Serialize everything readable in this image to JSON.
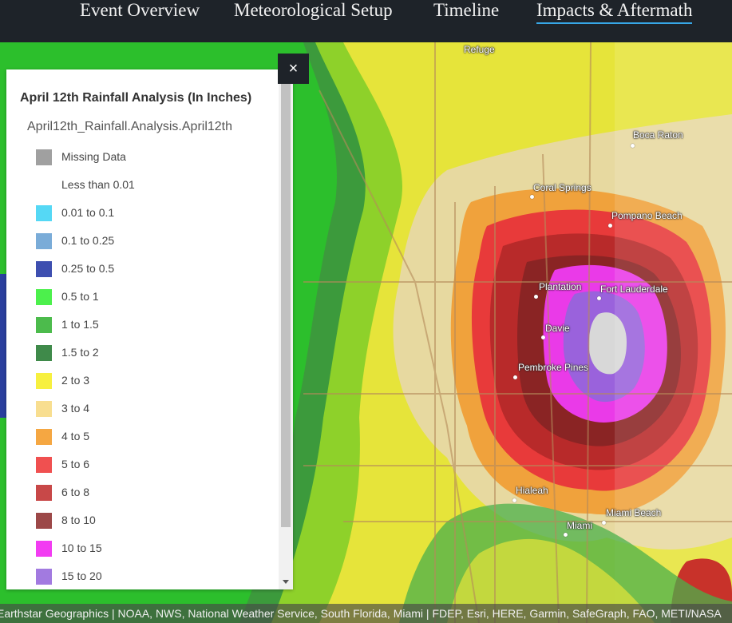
{
  "nav": {
    "tabs": [
      {
        "label": "Event Overview"
      },
      {
        "label": "Meteorological Setup"
      },
      {
        "label": "Timeline"
      },
      {
        "label": "Impacts & Aftermath"
      }
    ],
    "active_tab": "Impacts & Aftermath",
    "active_color": "#37a7e6"
  },
  "legend": {
    "title": "April 12th Rainfall Analysis (In Inches)",
    "layer_name": "April12th_Rainfall.Analysis.April12th",
    "close_label": "×",
    "items": [
      {
        "label": "Missing Data",
        "color": "#a0a0a0"
      },
      {
        "label": "Less than 0.01",
        "color": "#ffffff"
      },
      {
        "label": "0.01 to 0.1",
        "color": "#55d8f5"
      },
      {
        "label": "0.1 to 0.25",
        "color": "#7aacd8"
      },
      {
        "label": "0.25 to 0.5",
        "color": "#3e4fb0"
      },
      {
        "label": "0.5 to 1",
        "color": "#4cf04c"
      },
      {
        "label": "1 to 1.5",
        "color": "#4cbb4c"
      },
      {
        "label": "1.5 to 2",
        "color": "#3f8a4a"
      },
      {
        "label": "2 to 3",
        "color": "#f7f03f"
      },
      {
        "label": "3 to 4",
        "color": "#f8de90"
      },
      {
        "label": "4 to 5",
        "color": "#f5a742"
      },
      {
        "label": "5 to 6",
        "color": "#f05050"
      },
      {
        "label": "6 to 8",
        "color": "#c84848"
      },
      {
        "label": "8 to 10",
        "color": "#9c4848"
      },
      {
        "label": "10 to 15",
        "color": "#f23cf2"
      },
      {
        "label": "15 to 20",
        "color": "#a27ae0"
      }
    ]
  },
  "map": {
    "places": [
      {
        "name": "Refuge"
      },
      {
        "name": "Boca Raton"
      },
      {
        "name": "Coral Springs"
      },
      {
        "name": "Pompano Beach"
      },
      {
        "name": "Plantation"
      },
      {
        "name": "Fort Lauderdale"
      },
      {
        "name": "Davie"
      },
      {
        "name": "Pembroke Pines"
      },
      {
        "name": "Hialeah"
      },
      {
        "name": "Miami Beach"
      },
      {
        "name": "Miami"
      }
    ],
    "attribution": "Earthstar Geographics | NOAA, NWS, National Weather Service, South Florida, Miami | FDEP, Esri, HERE, Garmin, SafeGraph, FAO, METI/NASA"
  }
}
